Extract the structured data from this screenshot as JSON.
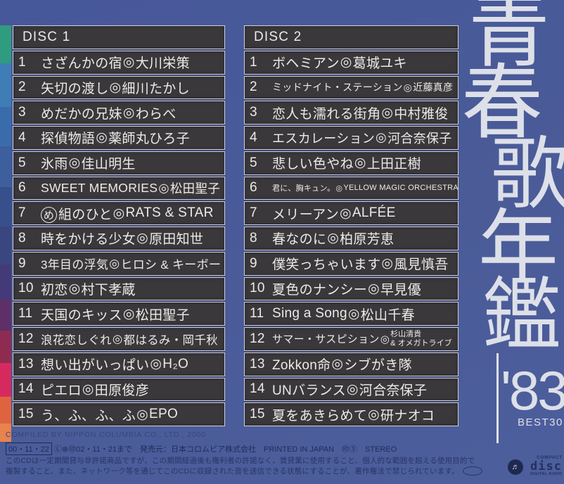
{
  "album": {
    "title_chars": [
      "青",
      "春",
      "歌",
      "年",
      "鑑"
    ],
    "year_label": "'83",
    "best_label": "BEST30"
  },
  "separator_mark": "◎",
  "discs": [
    {
      "header": "DISC 1",
      "tracks": [
        {
          "no": "1",
          "title": "さざんかの宿",
          "artist": "大川栄策"
        },
        {
          "no": "2",
          "title": "矢切の渡し",
          "artist": "細川たかし"
        },
        {
          "no": "3",
          "title": "めだかの兄妹",
          "artist": "わらべ"
        },
        {
          "no": "4",
          "title": "探偵物語",
          "artist": "薬師丸ひろ子"
        },
        {
          "no": "5",
          "title": "氷雨",
          "artist": "佳山明生"
        },
        {
          "no": "6",
          "title": "SWEET MEMORIES",
          "artist": "松田聖子"
        },
        {
          "no": "7",
          "title": "め組のひと",
          "artist": "RATS & STAR",
          "circle_first": true
        },
        {
          "no": "8",
          "title": "時をかける少女",
          "artist": "原田知世"
        },
        {
          "no": "9",
          "title": "3年目の浮気",
          "artist": "ヒロシ & キーボー"
        },
        {
          "no": "10",
          "title": "初恋",
          "artist": "村下孝蔵"
        },
        {
          "no": "11",
          "title": "天国のキッス",
          "artist": "松田聖子"
        },
        {
          "no": "12",
          "title": "浪花恋しぐれ",
          "artist": "都はるみ・岡千秋"
        },
        {
          "no": "13",
          "title": "想い出がいっぱい",
          "artist": "H₂O"
        },
        {
          "no": "14",
          "title": "ピエロ",
          "artist": "田原俊彦"
        },
        {
          "no": "15",
          "title": "う、ふ、ふ、ふ",
          "artist": "EPO"
        }
      ]
    },
    {
      "header": "DISC 2",
      "tracks": [
        {
          "no": "1",
          "title": "ボヘミアン",
          "artist": "葛城ユキ"
        },
        {
          "no": "2",
          "title": "ミッドナイト・ステーション",
          "artist": "近藤真彦"
        },
        {
          "no": "3",
          "title": "恋人も濡れる街角",
          "artist": "中村雅俊"
        },
        {
          "no": "4",
          "title": "エスカレーション",
          "artist": "河合奈保子"
        },
        {
          "no": "5",
          "title": "悲しい色やね",
          "artist": "上田正樹"
        },
        {
          "no": "6",
          "title": "君に、胸キュン。",
          "artist": "YELLOW MAGIC ORCHESTRA"
        },
        {
          "no": "7",
          "title": "メリーアン",
          "artist": "ALFÉE"
        },
        {
          "no": "8",
          "title": "春なのに",
          "artist": "柏原芳恵"
        },
        {
          "no": "9",
          "title": "僕笑っちゃいます",
          "artist": "風見慎吾"
        },
        {
          "no": "10",
          "title": "夏色のナンシー",
          "artist": "早見優"
        },
        {
          "no": "11",
          "title": "Sing a Song",
          "artist": "松山千春"
        },
        {
          "no": "12",
          "title": "サマー・サスピション",
          "artist": "杉山清貴 & オメガトライブ",
          "artist_lines": [
            "杉山清貴",
            "& オメガトライブ"
          ]
        },
        {
          "no": "13",
          "title": "Zokkon命",
          "artist": "シブがき隊"
        },
        {
          "no": "14",
          "title": "UNバランス",
          "artist": "河合奈保子"
        },
        {
          "no": "15",
          "title": "夏をあきらめて",
          "artist": "研ナオコ"
        }
      ]
    }
  ],
  "footer": {
    "compiled": "COMPILED BY NIPPON COLUMBIA CO., LTD., 2000",
    "date_box": "00・11・22",
    "rental_rest": "Ⓛ⊗㊞02・11・21まで　発売元：日本コロムビア株式会社　PRINTED IN JAPAN　㊞Ⓢ　STEREO",
    "notice_line1": "このCDは一定期間貸与非許諾商品ですが、この期間経過後も権利者の許諾なく、賃貸業に使用すること、個人的な範囲を超える使用目的で",
    "notice_line2": "複製すること、また、ネットワーク等を通じてこのCDに収録された音を送信できる状態にすることが、著作権法で禁じられています。",
    "columbia_logo_glyph": "♬",
    "cd_logo": {
      "top": "COMPACT",
      "mid": "disc",
      "bottom": "DIGITAL AUDIO"
    }
  },
  "stripe_colors": [
    "#2f9c80",
    "#3e7db6",
    "#3a6cab",
    "#3d5f9e",
    "#374f8a",
    "#3a4680",
    "#443a77",
    "#5f2f68",
    "#8e2b50",
    "#d62a5e",
    "#e0633f",
    "#e8824e"
  ]
}
